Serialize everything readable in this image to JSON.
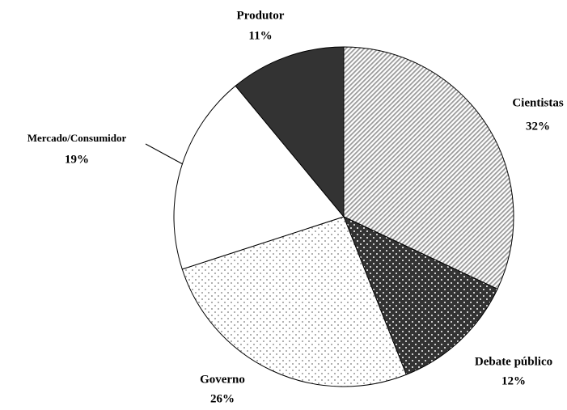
{
  "chart_data": {
    "type": "pie",
    "categories": [
      "Cientistas",
      "Debate público",
      "Governo",
      "Mercado/Consumidor",
      "Produtor"
    ],
    "values": [
      32,
      12,
      26,
      19,
      11
    ],
    "value_labels": [
      "32%",
      "12%",
      "26%",
      "19%",
      "11%"
    ],
    "colors": [
      "#9a9a9a",
      "#333333",
      "#ffffff",
      "#ffffff",
      "#333333"
    ],
    "patterns": [
      "stripes",
      "dots",
      "dots",
      "none",
      "none"
    ]
  }
}
